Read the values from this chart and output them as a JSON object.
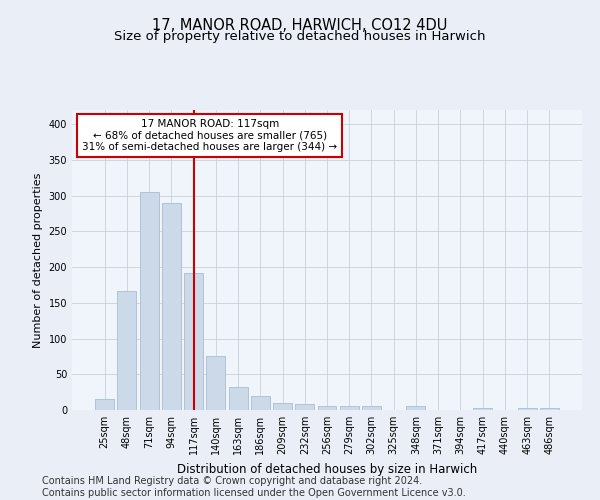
{
  "title": "17, MANOR ROAD, HARWICH, CO12 4DU",
  "subtitle": "Size of property relative to detached houses in Harwich",
  "xlabel": "Distribution of detached houses by size in Harwich",
  "ylabel": "Number of detached properties",
  "categories": [
    "25sqm",
    "48sqm",
    "71sqm",
    "94sqm",
    "117sqm",
    "140sqm",
    "163sqm",
    "186sqm",
    "209sqm",
    "232sqm",
    "256sqm",
    "279sqm",
    "302sqm",
    "325sqm",
    "348sqm",
    "371sqm",
    "394sqm",
    "417sqm",
    "440sqm",
    "463sqm",
    "486sqm"
  ],
  "values": [
    15,
    167,
    305,
    290,
    192,
    75,
    32,
    19,
    10,
    8,
    6,
    6,
    5,
    0,
    5,
    0,
    0,
    3,
    0,
    3,
    3
  ],
  "bar_color": "#ccd9e8",
  "bar_edgecolor": "#aabdd4",
  "vline_x_index": 4,
  "vline_color": "#cc0000",
  "annotation_line1": "17 MANOR ROAD: 117sqm",
  "annotation_line2": "← 68% of detached houses are smaller (765)",
  "annotation_line3": "31% of semi-detached houses are larger (344) →",
  "annotation_box_color": "#ffffff",
  "annotation_box_edgecolor": "#cc0000",
  "ylim": [
    0,
    420
  ],
  "yticks": [
    0,
    50,
    100,
    150,
    200,
    250,
    300,
    350,
    400
  ],
  "bg_color": "#eaeff7",
  "plot_bg_color": "#f0f4fb",
  "footer_line1": "Contains HM Land Registry data © Crown copyright and database right 2024.",
  "footer_line2": "Contains public sector information licensed under the Open Government Licence v3.0.",
  "title_fontsize": 10.5,
  "subtitle_fontsize": 9.5,
  "xlabel_fontsize": 8.5,
  "ylabel_fontsize": 8,
  "tick_fontsize": 7,
  "annotation_fontsize": 7.5,
  "footer_fontsize": 7
}
